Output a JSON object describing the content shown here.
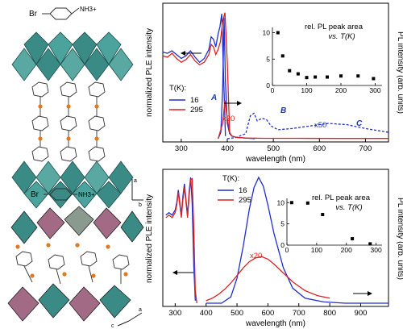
{
  "structures": {
    "top": {
      "molecule": {
        "br": "Br",
        "amine": "NH3+"
      },
      "axes": {
        "vertical": "a",
        "horizontal": "b"
      }
    },
    "bottom": {
      "molecule": {
        "br": "Br",
        "amine": "NH3+"
      },
      "axes": {
        "vertical": "a",
        "horizontal": "c"
      }
    },
    "colors": {
      "octahedra_teal": "#3a8a86",
      "octahedra_mauve": "#a26a84",
      "bromine_orange": "#e07a20"
    }
  },
  "chart_data": [
    {
      "type": "line",
      "id": "top-spectra",
      "xlabel": "wavelength (nm)",
      "ylabel_left": "normalized PLE intensity",
      "ylabel_right": "PL intensity (arb. units)",
      "xlim": [
        260,
        750
      ],
      "xticks": [
        300,
        400,
        500,
        600,
        700
      ],
      "legend": {
        "title": "T(K):",
        "entries": [
          {
            "name": "16",
            "color": "#1f2fd0"
          },
          {
            "name": "295",
            "color": "#e02020"
          }
        ],
        "placement": "center-left"
      },
      "annotations": {
        "peak_a": "A",
        "peak_b": "B",
        "peak_c": "C",
        "scale_red": "x20",
        "scale_blue": "x50"
      },
      "series": [
        {
          "name": "PLE 16 K",
          "color": "#1f2fd0",
          "dash": false,
          "x": [
            260,
            270,
            280,
            290,
            300,
            310,
            320,
            330,
            340,
            350,
            360,
            365,
            370,
            375,
            380,
            384,
            388,
            392,
            396
          ],
          "y": [
            0.68,
            0.67,
            0.69,
            0.66,
            0.63,
            0.65,
            0.69,
            0.64,
            0.6,
            0.63,
            0.7,
            0.8,
            0.78,
            0.72,
            0.82,
            0.88,
            0.98,
            0.5,
            0.02
          ]
        },
        {
          "name": "PLE 295 K",
          "color": "#e02020",
          "dash": false,
          "x": [
            260,
            270,
            280,
            290,
            300,
            310,
            320,
            330,
            340,
            350,
            360,
            365,
            370,
            375,
            380,
            385,
            390,
            395,
            400,
            405
          ],
          "y": [
            0.65,
            0.64,
            0.67,
            0.63,
            0.6,
            0.62,
            0.66,
            0.61,
            0.58,
            0.6,
            0.66,
            0.74,
            0.72,
            0.66,
            0.7,
            0.76,
            0.92,
            0.99,
            0.6,
            0.05
          ]
        },
        {
          "name": "PL 16 K",
          "color": "#1f2fd0",
          "dash": false,
          "x": [
            380,
            386,
            390,
            393,
            396,
            400,
            405,
            410,
            420,
            440,
            460
          ],
          "y": [
            0.0,
            0.05,
            0.4,
            0.95,
            0.45,
            0.12,
            0.04,
            0.02,
            0.01,
            0.005,
            0.0
          ]
        },
        {
          "name": "PL 16 K x50",
          "color": "#1f2fd0",
          "dash": true,
          "x": [
            400,
            420,
            440,
            450,
            458,
            465,
            475,
            485,
            495,
            510,
            540,
            580,
            620,
            660,
            700,
            750
          ],
          "y": [
            0.0,
            0.01,
            0.04,
            0.18,
            0.2,
            0.14,
            0.16,
            0.15,
            0.1,
            0.07,
            0.08,
            0.1,
            0.12,
            0.11,
            0.08,
            0.05
          ]
        },
        {
          "name": "PL 295 K x20",
          "color": "#e02020",
          "dash": false,
          "x": [
            380,
            390,
            395,
            400,
            405,
            410,
            420,
            440,
            480,
            550,
            650,
            750
          ],
          "y": [
            0.0,
            0.12,
            0.3,
            0.16,
            0.05,
            0.02,
            0.01,
            0.005,
            0.003,
            0.003,
            0.002,
            0.002
          ]
        }
      ],
      "inset": {
        "type": "scatter",
        "title": "rel. PL peak area",
        "subtitle": "vs. T(K)",
        "xlim": [
          0,
          320
        ],
        "ylim": [
          0,
          11
        ],
        "xticks": [
          0,
          100,
          200,
          300
        ],
        "yticks": [
          0,
          5,
          10
        ],
        "x": [
          16,
          30,
          50,
          75,
          100,
          125,
          160,
          200,
          250,
          295
        ],
        "y": [
          10,
          5.6,
          2.8,
          2.2,
          1.5,
          1.6,
          1.6,
          1.8,
          1.8,
          1.3
        ]
      }
    },
    {
      "type": "line",
      "id": "bottom-spectra",
      "xlabel": "wavelength (nm)",
      "ylabel_left": "normalized PLE intensity",
      "ylabel_right": "PL intensity (arb. units)",
      "xlim": [
        260,
        990
      ],
      "xticks": [
        300,
        400,
        500,
        600,
        700,
        800,
        900
      ],
      "legend": {
        "title": "T(K):",
        "entries": [
          {
            "name": "16",
            "color": "#1f2fd0"
          },
          {
            "name": "295",
            "color": "#e02020"
          }
        ],
        "placement": "top-center"
      },
      "annotations": {
        "scale_red": "x20"
      },
      "series": [
        {
          "name": "PLE 16 K",
          "color": "#1f2fd0",
          "dash": false,
          "x": [
            270,
            280,
            290,
            300,
            305,
            310,
            315,
            320,
            325,
            330,
            335,
            340,
            345,
            350,
            355,
            360,
            365
          ],
          "y": [
            0.7,
            0.72,
            0.7,
            0.74,
            0.8,
            0.9,
            0.8,
            0.7,
            0.85,
            0.95,
            0.82,
            0.7,
            0.88,
            1.0,
            0.8,
            0.3,
            0.02
          ]
        },
        {
          "name": "PLE 295 K",
          "color": "#e02020",
          "dash": false,
          "x": [
            270,
            280,
            290,
            300,
            305,
            310,
            315,
            320,
            325,
            330,
            335,
            340,
            345,
            350,
            355,
            360,
            365,
            370
          ],
          "y": [
            0.68,
            0.7,
            0.68,
            0.72,
            0.78,
            0.88,
            0.78,
            0.68,
            0.82,
            0.92,
            0.8,
            0.68,
            0.85,
            0.98,
            0.99,
            0.6,
            0.1,
            0.0
          ]
        },
        {
          "name": "PL 16 K",
          "color": "#1f2fd0",
          "dash": false,
          "x": [
            400,
            450,
            480,
            500,
            520,
            540,
            555,
            570,
            585,
            600,
            620,
            650,
            680,
            720,
            780,
            850,
            990
          ],
          "y": [
            0.0,
            0.0,
            0.05,
            0.2,
            0.45,
            0.75,
            0.92,
            1.0,
            0.93,
            0.78,
            0.55,
            0.28,
            0.12,
            0.04,
            0.01,
            0.0,
            0.0
          ]
        },
        {
          "name": "PL 295 K x20",
          "color": "#e02020",
          "dash": false,
          "x": [
            400,
            420,
            440,
            460,
            480,
            500,
            520,
            540,
            560,
            580,
            600,
            620,
            650,
            680,
            720,
            760,
            800
          ],
          "y": [
            0.02,
            0.04,
            0.07,
            0.11,
            0.16,
            0.22,
            0.28,
            0.33,
            0.36,
            0.37,
            0.35,
            0.31,
            0.24,
            0.17,
            0.1,
            0.06,
            0.04
          ]
        }
      ],
      "inset": {
        "type": "scatter",
        "title": "rel. PL peak area",
        "subtitle": "vs. T(K)",
        "xlim": [
          0,
          320
        ],
        "ylim": [
          0,
          11
        ],
        "xticks": [
          0,
          100,
          200,
          300
        ],
        "yticks": [
          0,
          5,
          10
        ],
        "x": [
          16,
          70,
          120,
          220,
          280
        ],
        "y": [
          10,
          9.9,
          7.2,
          1.5,
          0.3
        ]
      }
    }
  ]
}
